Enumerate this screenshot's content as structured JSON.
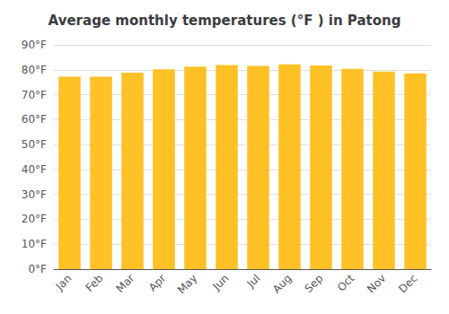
{
  "chart_data": {
    "type": "bar",
    "title": "Average monthly temperatures (°F ) in Patong",
    "categories": [
      "Jan",
      "Feb",
      "Mar",
      "Apr",
      "May",
      "Jun",
      "Jul",
      "Aug",
      "Sep",
      "Oct",
      "Nov",
      "Dec"
    ],
    "values": [
      77.2,
      77.2,
      78.8,
      80.2,
      81.3,
      81.9,
      81.5,
      82.2,
      81.7,
      80.4,
      79.3,
      78.6
    ],
    "color": "#FFC125",
    "ylim": [
      0,
      90
    ],
    "yticks": [
      {
        "value": 0,
        "label": "0°F"
      },
      {
        "value": 10,
        "label": "10°F"
      },
      {
        "value": 20,
        "label": "20°F"
      },
      {
        "value": 30,
        "label": "30°F"
      },
      {
        "value": 40,
        "label": "40°F"
      },
      {
        "value": 50,
        "label": "50°F"
      },
      {
        "value": 60,
        "label": "60°F"
      },
      {
        "value": 70,
        "label": "70°F"
      },
      {
        "value": 80,
        "label": "80°F"
      },
      {
        "value": 90,
        "label": "90°F"
      }
    ],
    "grid": true
  }
}
